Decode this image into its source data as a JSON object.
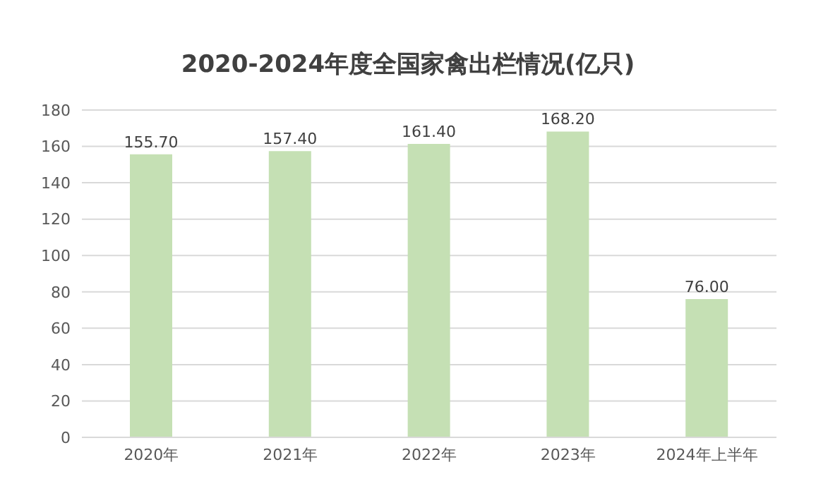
{
  "chart_data": {
    "type": "bar",
    "title": "2020-2024年度全国家禽出栏情况(亿只)",
    "categories": [
      "2020年",
      "2021年",
      "2022年",
      "2023年",
      "2024年上半年"
    ],
    "values": [
      155.7,
      157.4,
      161.4,
      168.2,
      76.0
    ],
    "color": "#c5e0b4",
    "ylim": [
      0,
      180
    ],
    "yticks": [
      0,
      20,
      40,
      60,
      80,
      100,
      120,
      140,
      160,
      180
    ],
    "value_labels": [
      "155.70",
      "157.40",
      "161.40",
      "168.20",
      "76.00"
    ],
    "grid": "y"
  }
}
